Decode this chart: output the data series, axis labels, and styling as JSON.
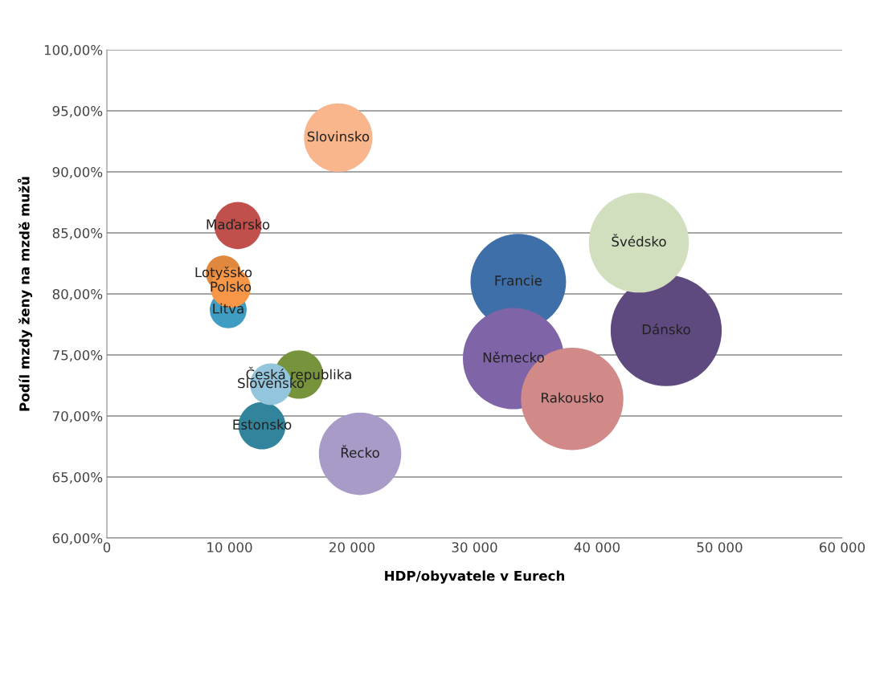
{
  "chart_data": {
    "type": "bubble",
    "xlabel": "HDP/obyvatele v Eurech",
    "ylabel": "Podíl mzdy ženy na mzdě mužů",
    "xlim": [
      0,
      60000
    ],
    "xticks": [
      {
        "value": 0,
        "label": "0"
      },
      {
        "value": 10000,
        "label": "10 000"
      },
      {
        "value": 20000,
        "label": "20 000"
      },
      {
        "value": 30000,
        "label": "30 000"
      },
      {
        "value": 40000,
        "label": "40 000"
      },
      {
        "value": 50000,
        "label": "50 000"
      },
      {
        "value": 60000,
        "label": "60 000"
      }
    ],
    "ylim": [
      60,
      100
    ],
    "yticks": [
      {
        "value": 60,
        "label": "60,00%"
      },
      {
        "value": 65,
        "label": "65,00%"
      },
      {
        "value": 70,
        "label": "70,00%"
      },
      {
        "value": 75,
        "label": "75,00%"
      },
      {
        "value": 80,
        "label": "80,00%"
      },
      {
        "value": 85,
        "label": "85,00%"
      },
      {
        "value": 90,
        "label": "90,00%"
      },
      {
        "value": 95,
        "label": "95,00%"
      },
      {
        "value": 100,
        "label": "100,00%"
      }
    ],
    "grid": "y",
    "legend": false,
    "series": [
      {
        "name": "Dánsko",
        "color": "#5f4a7f",
        "x": [
          45640
        ],
        "values": [
          77.0
        ],
        "sizes": [
          1
        ]
      },
      {
        "name": "Švédsko",
        "color": "#d2dfbf",
        "x": [
          43410
        ],
        "values": [
          84.2
        ],
        "sizes": [
          0.81
        ]
      },
      {
        "name": "Francie",
        "color": "#3e6fa8",
        "x": [
          33570
        ],
        "values": [
          81.0
        ],
        "sizes": [
          0.74
        ]
      },
      {
        "name": "Německo",
        "color": "#8064a8",
        "x": [
          33180
        ],
        "values": [
          74.7
        ],
        "sizes": [
          0.83
        ]
      },
      {
        "name": "Rakousko",
        "color": "#d18a88",
        "x": [
          37970
        ],
        "values": [
          71.4
        ],
        "sizes": [
          0.85
        ]
      },
      {
        "name": "Řecko",
        "color": "#a99bc7",
        "x": [
          20660
        ],
        "values": [
          66.9
        ],
        "sizes": [
          0.55
        ]
      },
      {
        "name": "Slovinsko",
        "color": "#f9b58b",
        "x": [
          18880
        ],
        "values": [
          92.8
        ],
        "sizes": [
          0.38
        ]
      },
      {
        "name": "Maďarsko",
        "color": "#c1504d",
        "x": [
          10690
        ],
        "values": [
          85.6
        ],
        "sizes": [
          0.18
        ]
      },
      {
        "name": "Litva",
        "color": "#3f9cc2",
        "x": [
          9900
        ],
        "values": [
          78.7
        ],
        "sizes": [
          0.11
        ]
      },
      {
        "name": "Lotyšsko",
        "color": "#e0893e",
        "x": [
          9510
        ],
        "values": [
          81.7
        ],
        "sizes": [
          0.1
        ]
      },
      {
        "name": "Polsko",
        "color": "#f79646",
        "x": [
          10100
        ],
        "values": [
          80.5
        ],
        "sizes": [
          0.13
        ]
      },
      {
        "name": "Estonsko",
        "color": "#31849b",
        "x": [
          12660
        ],
        "values": [
          69.2
        ],
        "sizes": [
          0.18
        ]
      },
      {
        "name": "Česká republika",
        "color": "#77933c",
        "x": [
          15670
        ],
        "values": [
          73.4
        ],
        "sizes": [
          0.19
        ]
      },
      {
        "name": "Slovensko",
        "color": "#93c5dc",
        "x": [
          13380
        ],
        "values": [
          72.6
        ],
        "sizes": [
          0.14
        ]
      }
    ]
  }
}
